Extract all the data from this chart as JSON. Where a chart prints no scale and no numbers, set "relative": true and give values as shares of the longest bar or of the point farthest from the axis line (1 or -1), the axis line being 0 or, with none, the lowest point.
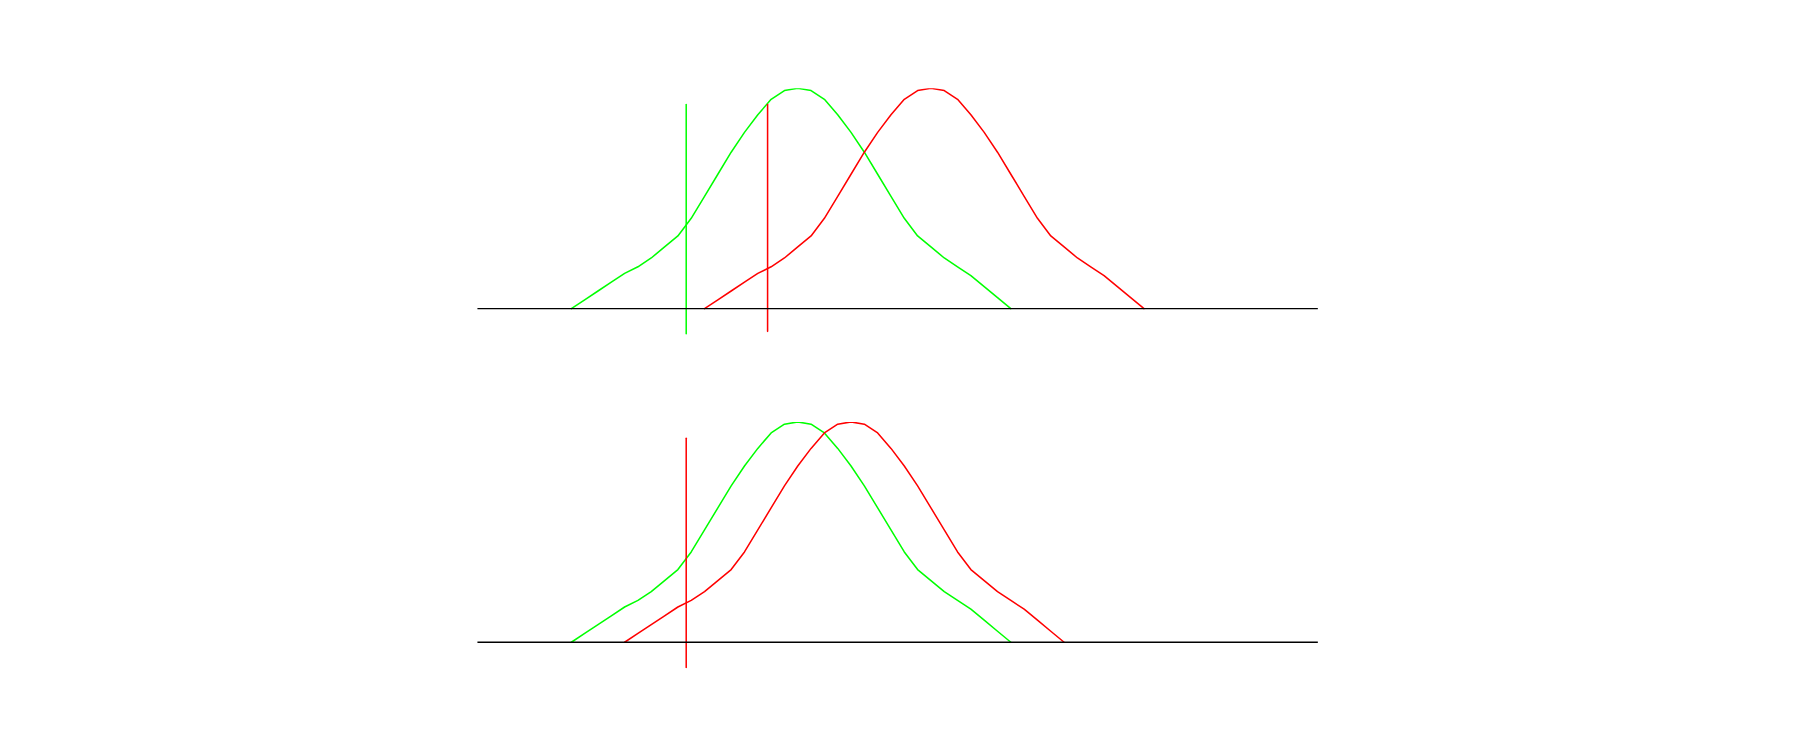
{
  "chart_data": [
    {
      "type": "line",
      "relative": true,
      "categories": [
        null,
        null,
        null,
        null,
        null,
        null,
        null,
        null,
        null,
        null,
        null,
        null,
        null,
        null,
        null,
        null,
        null,
        null,
        null,
        null,
        null,
        null,
        null,
        null,
        null,
        null,
        null,
        null,
        null,
        null,
        null,
        null,
        null,
        null,
        null,
        null,
        null,
        null,
        null,
        null,
        null,
        null,
        null,
        null,
        null,
        null,
        null,
        null,
        null,
        null,
        null,
        null,
        null,
        null,
        null,
        null,
        null,
        null,
        null,
        null,
        null,
        null,
        null,
        null
      ],
      "series": [
        {
          "color": "#00ff00",
          "values": [
            null,
            null,
            null,
            null,
            null,
            null,
            null,
            0,
            0.04,
            0.08,
            0.12,
            0.16,
            0.19,
            0.23,
            0.28,
            0.33,
            0.41,
            0.51,
            0.61,
            0.71,
            0.8,
            0.88,
            0.95,
            0.99,
            1,
            0.99,
            0.95,
            0.88,
            0.8,
            0.71,
            0.61,
            0.51,
            0.41,
            0.33,
            0.28,
            0.23,
            0.19,
            0.15,
            0.1,
            0.05,
            0,
            null,
            null,
            null,
            null,
            null,
            null,
            null,
            null,
            null,
            null,
            null,
            null,
            null,
            null,
            null,
            null,
            null,
            null,
            null,
            null,
            null,
            null,
            null
          ]
        },
        {
          "color": "#ff0000",
          "values": [
            null,
            null,
            null,
            null,
            null,
            null,
            null,
            null,
            null,
            null,
            null,
            null,
            null,
            null,
            null,
            null,
            null,
            0,
            0.04,
            0.08,
            0.12,
            0.16,
            0.19,
            0.23,
            0.28,
            0.33,
            0.41,
            0.51,
            0.61,
            0.71,
            0.8,
            0.88,
            0.95,
            0.99,
            1,
            0.99,
            0.95,
            0.88,
            0.8,
            0.71,
            0.61,
            0.51,
            0.41,
            0.33,
            0.28,
            0.23,
            0.19,
            0.15,
            0.1,
            0.05,
            0,
            null,
            null,
            null,
            null,
            null,
            null,
            null,
            null,
            null,
            null,
            null,
            null,
            null
          ]
        }
      ]
    },
    {
      "type": "line",
      "relative": true,
      "categories": [
        null,
        null,
        null,
        null,
        null,
        null,
        null,
        null,
        null,
        null,
        null,
        null,
        null,
        null,
        null,
        null,
        null,
        null,
        null,
        null,
        null,
        null,
        null,
        null,
        null,
        null,
        null,
        null,
        null,
        null,
        null,
        null,
        null,
        null,
        null,
        null,
        null,
        null,
        null,
        null,
        null,
        null,
        null,
        null,
        null,
        null,
        null,
        null,
        null,
        null,
        null,
        null,
        null,
        null,
        null,
        null,
        null,
        null,
        null,
        null,
        null,
        null,
        null,
        null
      ],
      "series": [
        {
          "color": "#00ff00",
          "values": [
            null,
            null,
            null,
            null,
            null,
            null,
            null,
            0,
            0.04,
            0.08,
            0.12,
            0.16,
            0.19,
            0.23,
            0.28,
            0.33,
            0.41,
            0.51,
            0.61,
            0.71,
            0.8,
            0.88,
            0.95,
            0.99,
            1,
            0.99,
            0.95,
            0.88,
            0.8,
            0.71,
            0.61,
            0.51,
            0.41,
            0.33,
            0.28,
            0.23,
            0.19,
            0.15,
            0.1,
            0.05,
            0,
            null,
            null,
            null,
            null,
            null,
            null,
            null,
            null,
            null,
            null,
            null,
            null,
            null,
            null,
            null,
            null,
            null,
            null,
            null,
            null,
            null,
            null,
            null
          ]
        },
        {
          "color": "#ff0000",
          "values": [
            null,
            null,
            null,
            null,
            null,
            null,
            null,
            null,
            null,
            null,
            null,
            0,
            0.04,
            0.08,
            0.12,
            0.16,
            0.19,
            0.23,
            0.28,
            0.33,
            0.41,
            0.51,
            0.61,
            0.71,
            0.8,
            0.88,
            0.95,
            0.99,
            1,
            0.99,
            0.95,
            0.88,
            0.8,
            0.71,
            0.61,
            0.51,
            0.41,
            0.33,
            0.28,
            0.23,
            0.19,
            0.15,
            0.1,
            0.05,
            0,
            null,
            null,
            null,
            null,
            null,
            null,
            null,
            null,
            null,
            null,
            null,
            null,
            null,
            null,
            null,
            null,
            null,
            null,
            null
          ]
        }
      ]
    }
  ]
}
